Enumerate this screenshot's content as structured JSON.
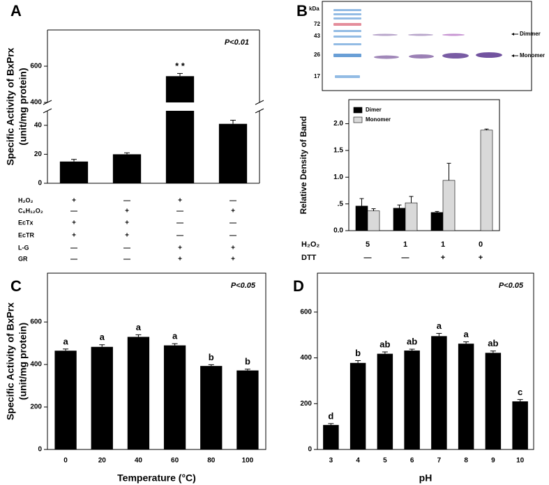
{
  "chart_data": [
    {
      "type": "bar",
      "panel": "A",
      "annotation": "P<0.01",
      "ylabel": [
        "Specific Activity of BxPrx",
        "(unit/mg protein)"
      ],
      "values": [
        15,
        20,
        545,
        41
      ],
      "errors": [
        1.5,
        1,
        15,
        2.5
      ],
      "color": "#000000",
      "significance": [
        null,
        null,
        "* *",
        null
      ],
      "ylim": [
        0,
        800
      ],
      "axis_break": [
        50,
        400
      ],
      "yticks": [
        0,
        20,
        40,
        400,
        600
      ],
      "conditions": [
        {
          "label": "H₂O₂",
          "values": [
            "+",
            "—",
            "+",
            "—"
          ]
        },
        {
          "label": "C₆H₁₂O₂",
          "values": [
            "—",
            "+",
            "—",
            "+"
          ]
        },
        {
          "label": "EcTx",
          "values": [
            "+",
            "+",
            "—",
            "—"
          ]
        },
        {
          "label": "EcTR",
          "values": [
            "+",
            "+",
            "—",
            "—"
          ]
        },
        {
          "label": "L-G",
          "values": [
            "—",
            "—",
            "+",
            "+"
          ]
        },
        {
          "label": "GR",
          "values": [
            "—",
            "—",
            "+",
            "+"
          ]
        }
      ]
    },
    {
      "type": "grouped-bar",
      "panel": "B",
      "ylabel": "Relative Density of Band",
      "series": [
        {
          "name": "Dimer",
          "color": "#000000",
          "values": [
            0.46,
            0.42,
            0.34,
            0
          ],
          "errors": [
            0.14,
            0.06,
            0.02,
            null
          ]
        },
        {
          "name": "Monomer",
          "color": "#d9d9d9",
          "values": [
            0.37,
            0.52,
            0.94,
            1.88
          ],
          "errors": [
            0.04,
            0.12,
            0.32,
            0.02
          ]
        }
      ],
      "ylim": [
        0,
        2.45
      ],
      "yticks": [
        {
          "value": 0,
          "label": "0.0"
        },
        {
          "value": 0.5,
          "label": ".5"
        },
        {
          "value": 1,
          "label": "1.0"
        },
        {
          "value": 1.5,
          "label": "1.5"
        },
        {
          "value": 2,
          "label": "2.0"
        }
      ],
      "legend": "top-left",
      "conditions": [
        {
          "label": "H₂O₂",
          "values": [
            "5",
            "1",
            "1",
            "0"
          ]
        },
        {
          "label": "DTT",
          "values": [
            "—",
            "—",
            "+",
            "+"
          ]
        }
      ],
      "gel": {
        "unit": "kDa",
        "markers": [
          "72",
          "43",
          "26",
          "17"
        ],
        "labels": [
          "Dimmer",
          "Monomer"
        ]
      }
    },
    {
      "type": "bar",
      "panel": "C",
      "annotation": "P<0.05",
      "ylabel": [
        "Specific Activity of BxPrx",
        "(unit/mg protein)"
      ],
      "xlabel": "Temperature (°C)",
      "categories": [
        0,
        20,
        40,
        60,
        80,
        100
      ],
      "values": [
        465,
        483,
        530,
        490,
        393,
        372
      ],
      "errors": [
        8,
        10,
        10,
        8,
        6,
        6
      ],
      "color": "#000000",
      "significance": [
        "a",
        "a",
        "a",
        "a",
        "b",
        "b"
      ],
      "ylim": [
        0,
        830
      ],
      "yticks": [
        0,
        200,
        400,
        600
      ]
    },
    {
      "type": "bar",
      "panel": "D",
      "annotation": "P<0.05",
      "xlabel": "pH",
      "categories": [
        3,
        4,
        5,
        6,
        7,
        8,
        9,
        10
      ],
      "values": [
        107,
        378,
        418,
        432,
        495,
        462,
        422,
        210
      ],
      "errors": [
        6,
        10,
        8,
        6,
        12,
        8,
        8,
        8
      ],
      "color": "#000000",
      "significance": [
        "d",
        "b",
        "ab",
        "ab",
        "a",
        "a",
        "ab",
        "c"
      ],
      "ylim": [
        0,
        770
      ],
      "yticks": [
        0,
        200,
        400,
        600
      ]
    }
  ]
}
